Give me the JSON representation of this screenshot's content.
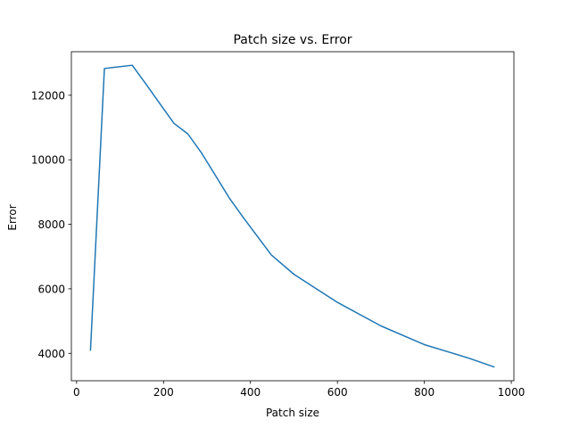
{
  "chart_data": {
    "type": "line",
    "title": "Patch size vs. Error",
    "xlabel": "Patch size",
    "ylabel": "Error",
    "xlim": [
      -12,
      1006
    ],
    "ylim": [
      3150,
      13350
    ],
    "xticks": [
      0,
      200,
      400,
      600,
      800,
      1000
    ],
    "xtick_labels": [
      "0",
      "200",
      "400",
      "600",
      "800",
      "1000"
    ],
    "yticks": [
      4000,
      6000,
      8000,
      10000,
      12000
    ],
    "ytick_labels": [
      "4000",
      "6000",
      "8000",
      "10000",
      "12000"
    ],
    "grid": false,
    "series": [
      {
        "color": "#1f77b4",
        "x": [
          32,
          64,
          128,
          160,
          192,
          224,
          256,
          288,
          320,
          352,
          384,
          448,
          500,
          600,
          700,
          800,
          900,
          960
        ],
        "y": [
          4100,
          12830,
          12930,
          12340,
          11730,
          11130,
          10800,
          10200,
          9500,
          8800,
          8200,
          7050,
          6450,
          5580,
          4850,
          4270,
          3860,
          3580
        ]
      }
    ]
  }
}
